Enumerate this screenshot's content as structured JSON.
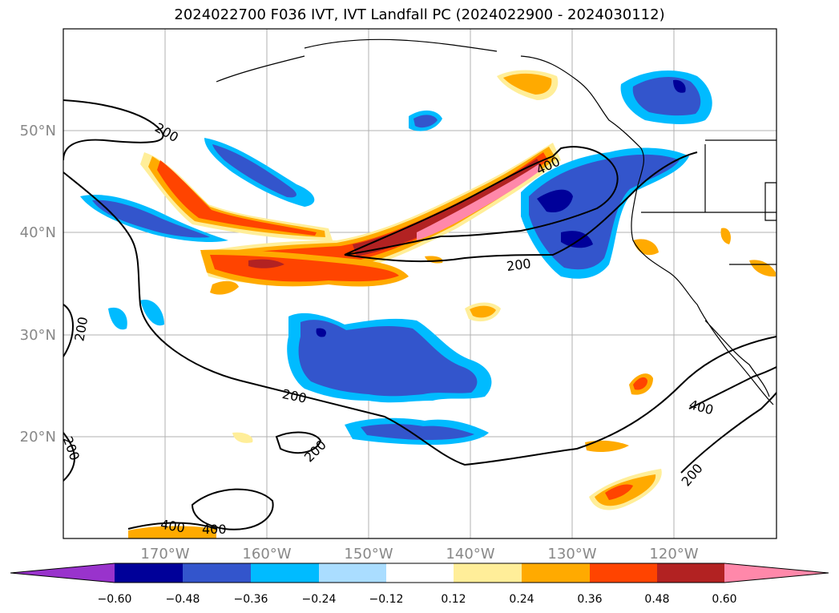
{
  "title": "2024022700 F036 IVT, IVT Landfall PC (2024022900 - 2024030112)",
  "map": {
    "lat_ticks": [
      "50°N",
      "40°N",
      "30°N",
      "20°N"
    ],
    "lon_ticks": [
      "170°W",
      "160°W",
      "150°W",
      "140°W",
      "130°W",
      "120°W"
    ],
    "contour_labels": [
      "200",
      "200",
      "200",
      "200",
      "200",
      "200",
      "200",
      "400",
      "400",
      "400",
      "400"
    ]
  },
  "colorbar": {
    "colors": [
      "#9933cc",
      "#000099",
      "#3355cc",
      "#00bbff",
      "#aaddff",
      "#ffffff",
      "#ffee99",
      "#ffaa00",
      "#ff4400",
      "#b22222",
      "#ff88aa"
    ],
    "tick_labels": [
      "−0.60",
      "−0.48",
      "−0.36",
      "−0.24",
      "−0.12",
      "0.12",
      "0.24",
      "0.36",
      "0.48",
      "0.60"
    ]
  }
}
